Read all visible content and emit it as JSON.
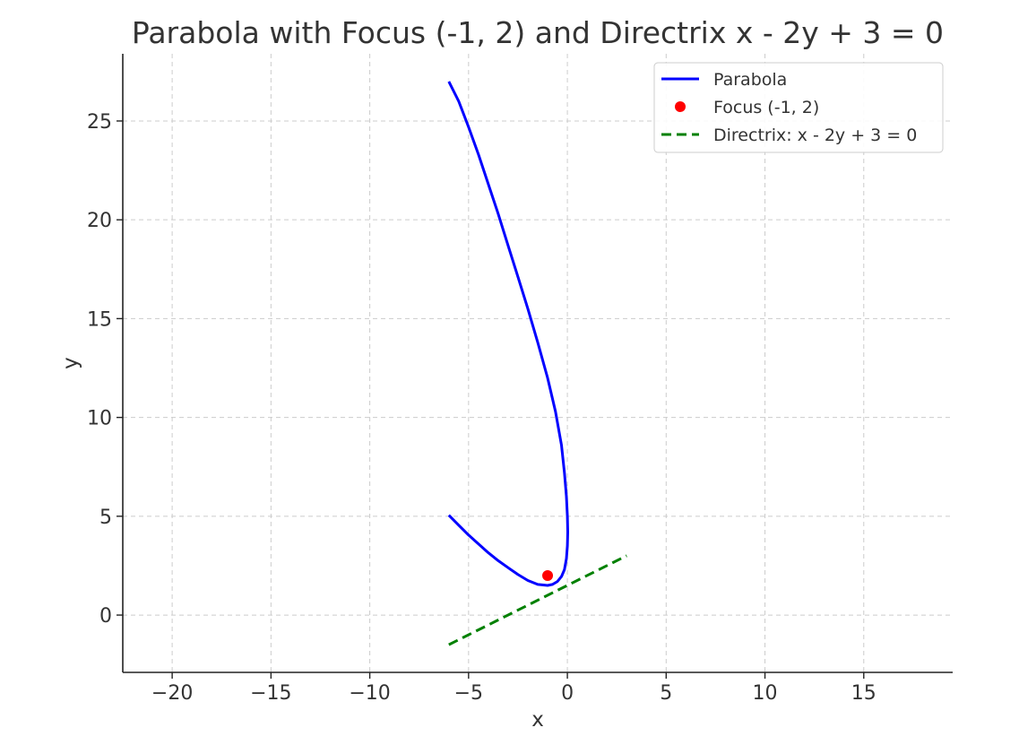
{
  "chart_data": {
    "type": "line",
    "title": "Parabola with Focus (-1, 2) and Directrix x - 2y + 3 = 0",
    "xlabel": "x",
    "ylabel": "y",
    "xlim": [
      -22.5,
      19.5
    ],
    "ylim": [
      -2.9,
      28.4
    ],
    "xticks": [
      -20,
      -15,
      -10,
      -5,
      0,
      5,
      10,
      15
    ],
    "xtick_labels": [
      "−20",
      "−15",
      "−10",
      "−5",
      "0",
      "5",
      "10",
      "15"
    ],
    "yticks": [
      0,
      5,
      10,
      15,
      20,
      25
    ],
    "ytick_labels": [
      "0",
      "5",
      "10",
      "15",
      "20",
      "25"
    ],
    "grid": true,
    "legend_position": "top-right",
    "series": [
      {
        "name": "Parabola",
        "kind": "line",
        "color": "#0000ff",
        "x": [
          -6.0,
          -5.5,
          -5.0,
          -4.5,
          -4.0,
          -3.5,
          -3.0,
          -2.5,
          -2.0,
          -1.5,
          -1.0,
          -0.75,
          -0.5,
          -0.3,
          -0.15,
          -0.05,
          0.0,
          0.02,
          0.0,
          -0.05,
          -0.15,
          -0.3,
          -0.6,
          -1.0,
          -1.5,
          -2.0,
          -2.5,
          -3.0,
          -3.5,
          -4.0,
          -4.5,
          -5.0,
          -5.5,
          -6.0
        ],
        "y": [
          5.05,
          4.55,
          4.05,
          3.6,
          3.15,
          2.75,
          2.4,
          2.05,
          1.75,
          1.55,
          1.5,
          1.55,
          1.7,
          1.95,
          2.3,
          2.85,
          3.5,
          4.2,
          5.0,
          6.0,
          7.2,
          8.6,
          10.3,
          12.0,
          13.8,
          15.5,
          17.1,
          18.7,
          20.3,
          21.8,
          23.3,
          24.7,
          26.0,
          27.0
        ]
      },
      {
        "name": "Focus (-1, 2)",
        "kind": "point",
        "color": "#ff0000",
        "x": [
          -1
        ],
        "y": [
          2
        ]
      },
      {
        "name": "Directrix: x - 2y + 3 = 0",
        "kind": "dashed-line",
        "color": "#008000",
        "x": [
          -6,
          3
        ],
        "y": [
          -1.5,
          3
        ]
      }
    ]
  }
}
